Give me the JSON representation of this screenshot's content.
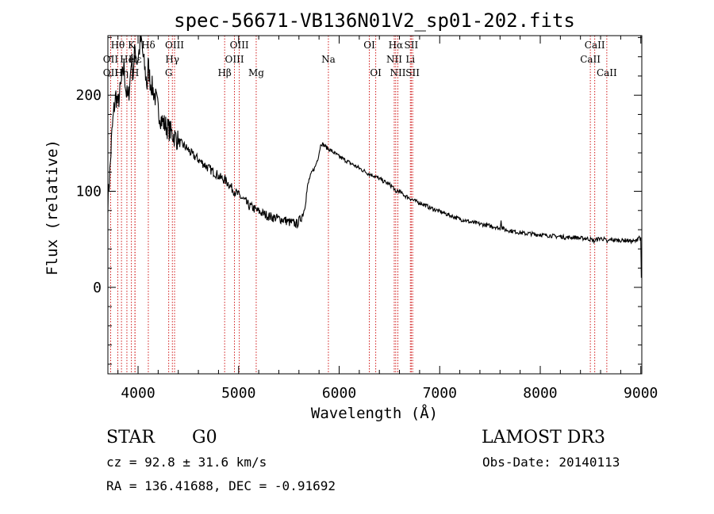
{
  "chart_data": {
    "type": "line",
    "title": "spec-56671-VB136N01V2_sp01-202.fits",
    "xlabel": "Wavelength (Å)",
    "ylabel": "Flux (relative)",
    "xlim": [
      3700,
      9010
    ],
    "ylim": [
      -90,
      262
    ],
    "x_ticks": [
      4000,
      5000,
      6000,
      7000,
      8000,
      9000
    ],
    "y_ticks": [
      0,
      100,
      200
    ],
    "x_tick_labels": [
      "4000",
      "5000",
      "6000",
      "7000",
      "8000",
      "9000"
    ],
    "y_tick_labels": [
      "0",
      "100",
      "200"
    ],
    "series": [
      {
        "name": "flux",
        "x": [
          3700,
          3720,
          3740,
          3760,
          3780,
          3800,
          3830,
          3860,
          3880,
          3900,
          3920,
          3935,
          3950,
          3970,
          3990,
          4010,
          4030,
          4050,
          4070,
          4090,
          4100,
          4120,
          4150,
          4180,
          4200,
          4230,
          4260,
          4300,
          4340,
          4380,
          4420,
          4460,
          4500,
          4540,
          4580,
          4620,
          4660,
          4700,
          4740,
          4780,
          4820,
          4860,
          4900,
          4940,
          4980,
          5020,
          5060,
          5100,
          5140,
          5180,
          5220,
          5260,
          5300,
          5340,
          5380,
          5420,
          5460,
          5500,
          5540,
          5580,
          5620,
          5650,
          5680,
          5700,
          5730,
          5760,
          5790,
          5820,
          5850,
          5880,
          5910,
          5950,
          6000,
          6050,
          6100,
          6150,
          6200,
          6250,
          6300,
          6350,
          6400,
          6450,
          6500,
          6540,
          6563,
          6580,
          6620,
          6660,
          6700,
          6750,
          6800,
          6850,
          6900,
          6950,
          7000,
          7050,
          7100,
          7150,
          7200,
          7250,
          7300,
          7350,
          7400,
          7450,
          7500,
          7550,
          7600,
          7610,
          7620,
          7650,
          7700,
          7750,
          7800,
          7850,
          7900,
          7950,
          8000,
          8050,
          8100,
          8150,
          8200,
          8250,
          8300,
          8350,
          8400,
          8450,
          8500,
          8540,
          8560,
          8600,
          8640,
          8665,
          8700,
          8750,
          8800,
          8850,
          8900,
          8950,
          8980,
          9000,
          9005
        ],
        "y": [
          90,
          120,
          160,
          185,
          200,
          190,
          210,
          230,
          205,
          195,
          215,
          240,
          220,
          250,
          235,
          245,
          260,
          240,
          225,
          210,
          232,
          215,
          205,
          195,
          185,
          175,
          170,
          165,
          160,
          155,
          150,
          147,
          143,
          138,
          135,
          131,
          128,
          124,
          121,
          118,
          114,
          112,
          108,
          102,
          98,
          94,
          90,
          85,
          83,
          80,
          78,
          76,
          74,
          73,
          72,
          71,
          70,
          68,
          67,
          66,
          72,
          80,
          100,
          112,
          120,
          125,
          135,
          150,
          148,
          145,
          143,
          140,
          136,
          133,
          130,
          127,
          124,
          121,
          118,
          116,
          113,
          110,
          107,
          104,
          98,
          101,
          98,
          95,
          93,
          90,
          88,
          86,
          83,
          81,
          79,
          77,
          75,
          73,
          71,
          70,
          68,
          67,
          66,
          65,
          64,
          63,
          61,
          70,
          62,
          60,
          59,
          58,
          57,
          56,
          56,
          55,
          55,
          54,
          54,
          53,
          53,
          52,
          52,
          52,
          51,
          51,
          50,
          48,
          50,
          51,
          50,
          47,
          50,
          49,
          49,
          49,
          48,
          48,
          53,
          50,
          10
        ]
      }
    ],
    "spectral_lines": [
      {
        "name": "Hθ",
        "wavelength": 3798,
        "row": 1
      },
      {
        "name": "K",
        "wavelength": 3934,
        "row": 1
      },
      {
        "name": "Hδ",
        "wavelength": 4102,
        "row": 1
      },
      {
        "name": "OII",
        "wavelength": 3727,
        "row": 2
      },
      {
        "name": "He",
        "wavelength": 3889,
        "row": 2
      },
      {
        "name": "Hε",
        "wavelength": 3970,
        "row": 2
      },
      {
        "name": "OII",
        "wavelength": 3727,
        "row": 3
      },
      {
        "name": "Hη",
        "wavelength": 3835,
        "row": 3
      },
      {
        "name": "H",
        "wavelength": 3969,
        "row": 3
      },
      {
        "name": "OIII",
        "wavelength": 4363,
        "row": 1
      },
      {
        "name": "Hγ",
        "wavelength": 4341,
        "row": 2
      },
      {
        "name": "G",
        "wavelength": 4305,
        "row": 3
      },
      {
        "name": "OIII",
        "wavelength": 5007,
        "row": 1
      },
      {
        "name": "OIII",
        "wavelength": 4959,
        "row": 2
      },
      {
        "name": "Hβ",
        "wavelength": 4861,
        "row": 3
      },
      {
        "name": "Mg",
        "wavelength": 5175,
        "row": 3
      },
      {
        "name": "Na",
        "wavelength": 5893,
        "row": 2
      },
      {
        "name": "OI",
        "wavelength": 6300,
        "row": 1
      },
      {
        "name": "OI",
        "wavelength": 6364,
        "row": 3
      },
      {
        "name": "Hα",
        "wavelength": 6563,
        "row": 1
      },
      {
        "name": "NII",
        "wavelength": 6548,
        "row": 2
      },
      {
        "name": "NII",
        "wavelength": 6584,
        "row": 3
      },
      {
        "name": "SII",
        "wavelength": 6717,
        "row": 1
      },
      {
        "name": "Li",
        "wavelength": 6708,
        "row": 2
      },
      {
        "name": "SII",
        "wavelength": 6731,
        "row": 3
      },
      {
        "name": "CaII",
        "wavelength": 8542,
        "row": 1
      },
      {
        "name": "CaII",
        "wavelength": 8498,
        "row": 2
      },
      {
        "name": "CaII",
        "wavelength": 8662,
        "row": 3
      }
    ],
    "line_color": "#000000",
    "marker_color": "#cc0000"
  },
  "info": {
    "object_class": "STAR",
    "subclass": "G0",
    "survey": "LAMOST DR3",
    "velocity": "cz = 92.8 ± 31.6 km/s",
    "obs_date": "Obs-Date: 20140113",
    "coords": "RA = 136.41688, DEC =  -0.91692"
  }
}
